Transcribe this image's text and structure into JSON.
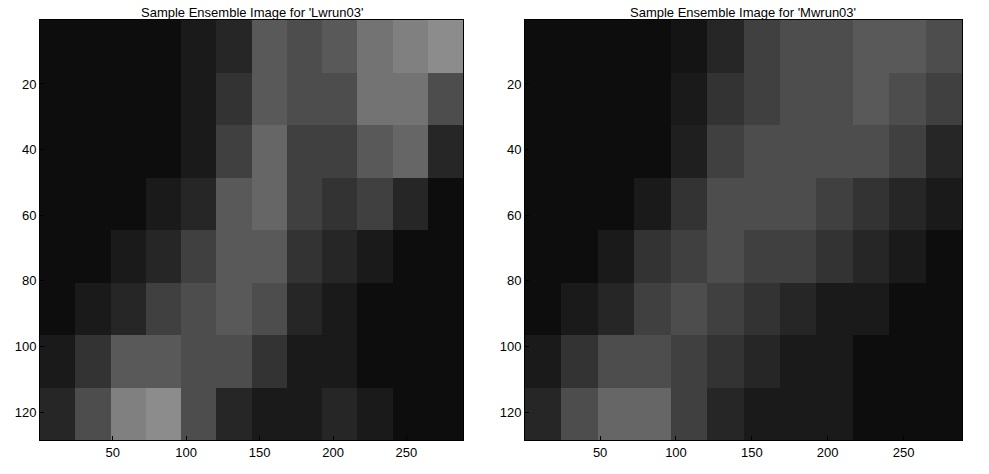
{
  "chart_data": [
    {
      "type": "heatmap",
      "title": "Sample Ensemble Image for 'Lwrun03'",
      "xlim": [
        0.5,
        288.5
      ],
      "ylim": [
        0.5,
        128.5
      ],
      "xticks": [
        50,
        100,
        150,
        200,
        250
      ],
      "yticks": [
        20,
        40,
        60,
        80,
        100,
        120
      ],
      "zlim": [
        0,
        1
      ],
      "x": [
        12.5,
        36.5,
        60.5,
        84.5,
        108.5,
        132.5,
        156.5,
        180.5,
        204.5,
        228.5,
        252.5,
        276.5
      ],
      "y": [
        8.5,
        24.5,
        40.5,
        56.5,
        72.5,
        88.5,
        104.5,
        120.5
      ],
      "z": [
        [
          0.05,
          0.05,
          0.05,
          0.05,
          0.1,
          0.15,
          0.35,
          0.3,
          0.35,
          0.45,
          0.5,
          0.55
        ],
        [
          0.05,
          0.05,
          0.05,
          0.05,
          0.1,
          0.2,
          0.35,
          0.3,
          0.3,
          0.45,
          0.45,
          0.3
        ],
        [
          0.05,
          0.05,
          0.05,
          0.05,
          0.1,
          0.25,
          0.4,
          0.25,
          0.25,
          0.35,
          0.4,
          0.15
        ],
        [
          0.05,
          0.05,
          0.05,
          0.1,
          0.15,
          0.35,
          0.4,
          0.25,
          0.2,
          0.25,
          0.15,
          0.05
        ],
        [
          0.05,
          0.05,
          0.1,
          0.15,
          0.25,
          0.35,
          0.35,
          0.2,
          0.15,
          0.1,
          0.05,
          0.05
        ],
        [
          0.05,
          0.1,
          0.15,
          0.25,
          0.3,
          0.35,
          0.3,
          0.15,
          0.1,
          0.05,
          0.05,
          0.05
        ],
        [
          0.1,
          0.2,
          0.35,
          0.35,
          0.3,
          0.3,
          0.2,
          0.1,
          0.1,
          0.05,
          0.05,
          0.05
        ],
        [
          0.15,
          0.3,
          0.5,
          0.55,
          0.3,
          0.15,
          0.1,
          0.1,
          0.15,
          0.1,
          0.05,
          0.05
        ]
      ]
    },
    {
      "type": "heatmap",
      "title": "Sample Ensemble Image for 'Mwrun03'",
      "xlim": [
        0.5,
        288.5
      ],
      "ylim": [
        0.5,
        128.5
      ],
      "xticks": [
        50,
        100,
        150,
        200,
        250
      ],
      "yticks": [
        20,
        40,
        60,
        80,
        100,
        120
      ],
      "zlim": [
        0,
        1
      ],
      "x": [
        12.5,
        36.5,
        60.5,
        84.5,
        108.5,
        132.5,
        156.5,
        180.5,
        204.5,
        228.5,
        252.5,
        276.5
      ],
      "y": [
        8.5,
        24.5,
        40.5,
        56.5,
        72.5,
        88.5,
        104.5,
        120.5
      ],
      "z": [
        [
          0.05,
          0.05,
          0.05,
          0.05,
          0.08,
          0.15,
          0.25,
          0.3,
          0.3,
          0.35,
          0.35,
          0.3
        ],
        [
          0.05,
          0.05,
          0.05,
          0.05,
          0.1,
          0.2,
          0.25,
          0.3,
          0.3,
          0.35,
          0.3,
          0.25
        ],
        [
          0.05,
          0.05,
          0.05,
          0.05,
          0.12,
          0.25,
          0.3,
          0.3,
          0.3,
          0.3,
          0.25,
          0.15
        ],
        [
          0.05,
          0.05,
          0.05,
          0.1,
          0.2,
          0.3,
          0.3,
          0.3,
          0.25,
          0.2,
          0.15,
          0.1
        ],
        [
          0.05,
          0.05,
          0.1,
          0.2,
          0.25,
          0.3,
          0.25,
          0.25,
          0.2,
          0.15,
          0.1,
          0.05
        ],
        [
          0.05,
          0.1,
          0.15,
          0.25,
          0.3,
          0.25,
          0.2,
          0.15,
          0.1,
          0.1,
          0.05,
          0.05
        ],
        [
          0.1,
          0.2,
          0.3,
          0.3,
          0.25,
          0.2,
          0.15,
          0.1,
          0.1,
          0.05,
          0.05,
          0.05
        ],
        [
          0.15,
          0.3,
          0.4,
          0.4,
          0.25,
          0.15,
          0.1,
          0.1,
          0.1,
          0.05,
          0.05,
          0.05
        ]
      ]
    }
  ]
}
